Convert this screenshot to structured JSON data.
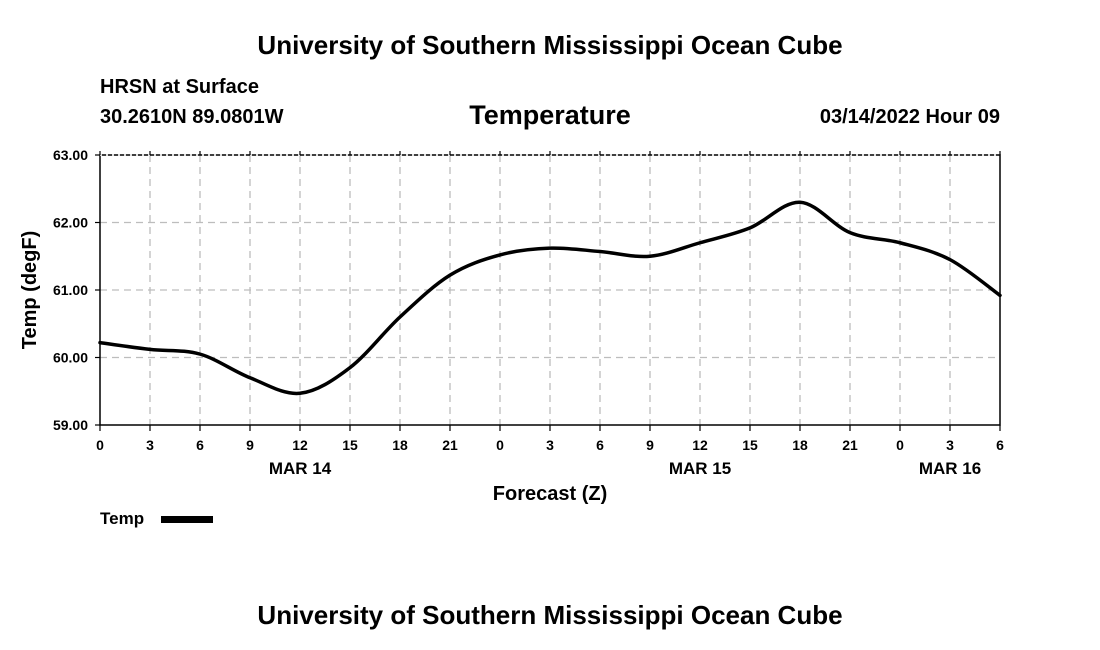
{
  "header": {
    "title": "University of Southern Mississippi Ocean Cube",
    "station": "HRSN at Surface",
    "coords": "30.2610N  89.0801W",
    "datetime": "03/14/2022 Hour 09"
  },
  "footer": {
    "title": "University of Southern Mississippi Ocean Cube"
  },
  "legend": {
    "label": "Temp",
    "color": "#000000"
  },
  "chart_data": {
    "type": "line",
    "title": "Temperature",
    "xlabel": "Forecast (Z)",
    "ylabel": "Temp (degF)",
    "xlim": [
      0,
      54
    ],
    "ylim": [
      59.0,
      63.0
    ],
    "grid": true,
    "y_ticks": [
      "59.00",
      "60.00",
      "61.00",
      "62.00",
      "63.00"
    ],
    "x_ticks": [
      "0",
      "3",
      "6",
      "9",
      "12",
      "15",
      "18",
      "21",
      "0",
      "3",
      "6",
      "9",
      "12",
      "15",
      "18",
      "21",
      "0",
      "3",
      "6"
    ],
    "date_labels": [
      {
        "label": "MAR 14",
        "x": 12
      },
      {
        "label": "MAR 15",
        "x": 36
      },
      {
        "label": "MAR 16",
        "x": 51
      }
    ],
    "series": [
      {
        "name": "Temp",
        "color": "#000000",
        "x": [
          0,
          3,
          6,
          9,
          12,
          15,
          18,
          21,
          24,
          27,
          30,
          33,
          36,
          39,
          42,
          45,
          48,
          51,
          54
        ],
        "values": [
          60.22,
          60.12,
          60.05,
          59.7,
          59.47,
          59.85,
          60.6,
          61.22,
          61.52,
          61.62,
          61.57,
          61.5,
          61.7,
          61.92,
          62.3,
          61.85,
          61.7,
          61.45,
          60.92
        ]
      }
    ]
  }
}
